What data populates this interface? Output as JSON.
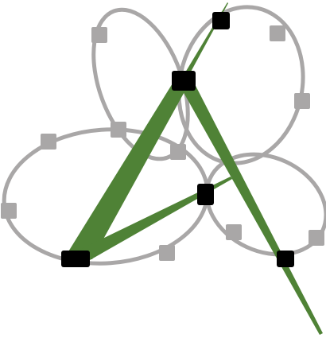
{
  "colors": {
    "background": "#ffffff",
    "loop": "#a9a7a7",
    "loop_node": "#a9a7a7",
    "stroke": "#4f8236",
    "key_node": "#000000"
  },
  "loops": [
    {
      "id": "loop-top-left"
    },
    {
      "id": "loop-top-right"
    },
    {
      "id": "loop-bottom-left"
    },
    {
      "id": "loop-bottom-right"
    }
  ],
  "wedges": [
    {
      "id": "wedge-left-arm"
    },
    {
      "id": "wedge-right-arm"
    },
    {
      "id": "wedge-bottom-arm"
    },
    {
      "id": "wedge-top-tip"
    }
  ],
  "nodes": [
    {
      "id": "key-node-top",
      "kind": "key"
    },
    {
      "id": "key-node-apex",
      "kind": "key"
    },
    {
      "id": "key-node-mid-right",
      "kind": "key"
    },
    {
      "id": "key-node-bottom-left",
      "kind": "key"
    },
    {
      "id": "key-node-bottom-right",
      "kind": "key"
    }
  ]
}
